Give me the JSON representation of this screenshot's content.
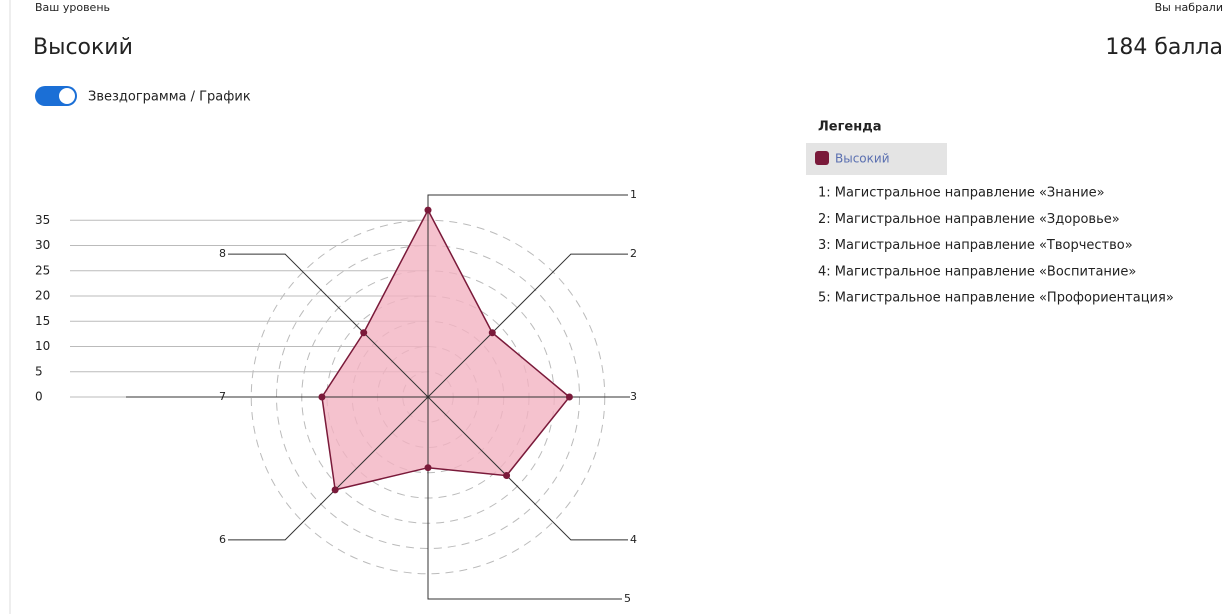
{
  "header": {
    "level_label": "Ваш уровень",
    "level": "Высокий",
    "score_label": "Вы набрали",
    "score": "184 балла"
  },
  "toggle_label": "Звездограмма / График",
  "legend": {
    "title": "Легенда",
    "items": [
      "1: Магистральное направление «Знание»",
      "2: Магистральное направление «Здоровье»",
      "3: Магистральное направление «Творчество»",
      "4: Магистральное направление «Воспитание»",
      "5: Магистральное направление «Профориентация»"
    ]
  },
  "chart_data": {
    "type": "radar",
    "categories": [
      "1",
      "2",
      "3",
      "4",
      "5",
      "6",
      "7",
      "8"
    ],
    "series": [
      {
        "name": "Высокий",
        "color": "#7a1a3a",
        "fill_color": "#f2b3c2",
        "values": [
          37,
          18,
          28,
          22,
          14,
          26,
          21,
          18
        ]
      }
    ],
    "ylim": [
      0,
      40
    ],
    "yticks": [
      0,
      5,
      10,
      15,
      20,
      25,
      30,
      35
    ],
    "grid": true
  }
}
